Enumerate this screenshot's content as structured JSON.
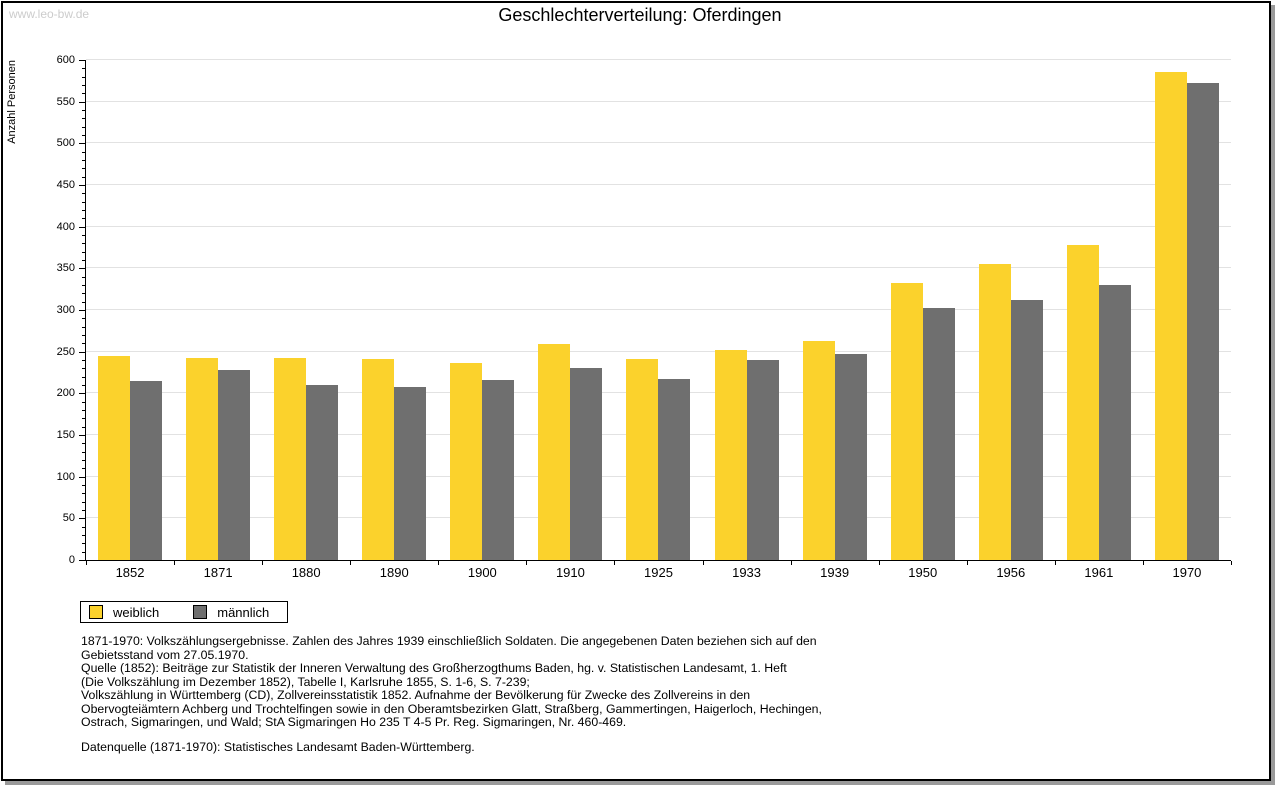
{
  "watermark": "www.leo-bw.de",
  "chart_data": {
    "type": "bar",
    "title": "Geschlechterverteilung: Oferdingen",
    "xlabel": "",
    "ylabel": "Anzahl Personen",
    "ylim": [
      0,
      600
    ],
    "y_major_step": 50,
    "y_minor_step": 10,
    "grid": true,
    "legend_position": "bottom-left",
    "categories": [
      "1852",
      "1871",
      "1880",
      "1890",
      "1900",
      "1910",
      "1925",
      "1933",
      "1939",
      "1950",
      "1956",
      "1961",
      "1970"
    ],
    "series": [
      {
        "name": "weiblich",
        "color": "#fbd22c",
        "values": [
          245,
          242,
          243,
          241,
          236,
          259,
          241,
          252,
          263,
          333,
          355,
          378,
          586
        ]
      },
      {
        "name": "männlich",
        "color": "#6f6f6f",
        "values": [
          215,
          228,
          210,
          208,
          216,
          231,
          217,
          240,
          247,
          302,
          312,
          330,
          573
        ]
      }
    ]
  },
  "footnotes": {
    "lines": [
      "1871-1970: Volkszählungsergebnisse. Zahlen des Jahres 1939 einschließlich Soldaten. Die angegebenen Daten beziehen sich auf den",
      "Gebietsstand vom 27.05.1970.",
      "Quelle (1852): Beiträge zur Statistik der Inneren Verwaltung des Großherzogthums Baden, hg. v. Statistischen Landesamt, 1. Heft",
      "(Die Volkszählung im Dezember 1852), Tabelle I, Karlsruhe 1855, S. 1-6, S. 7-239;",
      "Volkszählung in Württemberg (CD), Zollvereinsstatistik 1852. Aufnahme der Bevölkerung für Zwecke des Zollvereins in den",
      "Obervogteiämtern Achberg und Trochtelfingen sowie in den Oberamtsbezirken Glatt, Straßberg, Gammertingen, Haigerloch, Hechingen,",
      "Ostrach, Sigmaringen, und Wald; StA Sigmaringen Ho 235 T 4-5 Pr. Reg. Sigmaringen, Nr. 460-469."
    ],
    "datasource": "Datenquelle (1871-1970): Statistisches Landesamt Baden-Württemberg."
  },
  "colors": {
    "gridline": "#e2e2e2",
    "axis": "#000000",
    "watermark": "#cccccc",
    "frame_shadow": "#9a9a9a"
  }
}
